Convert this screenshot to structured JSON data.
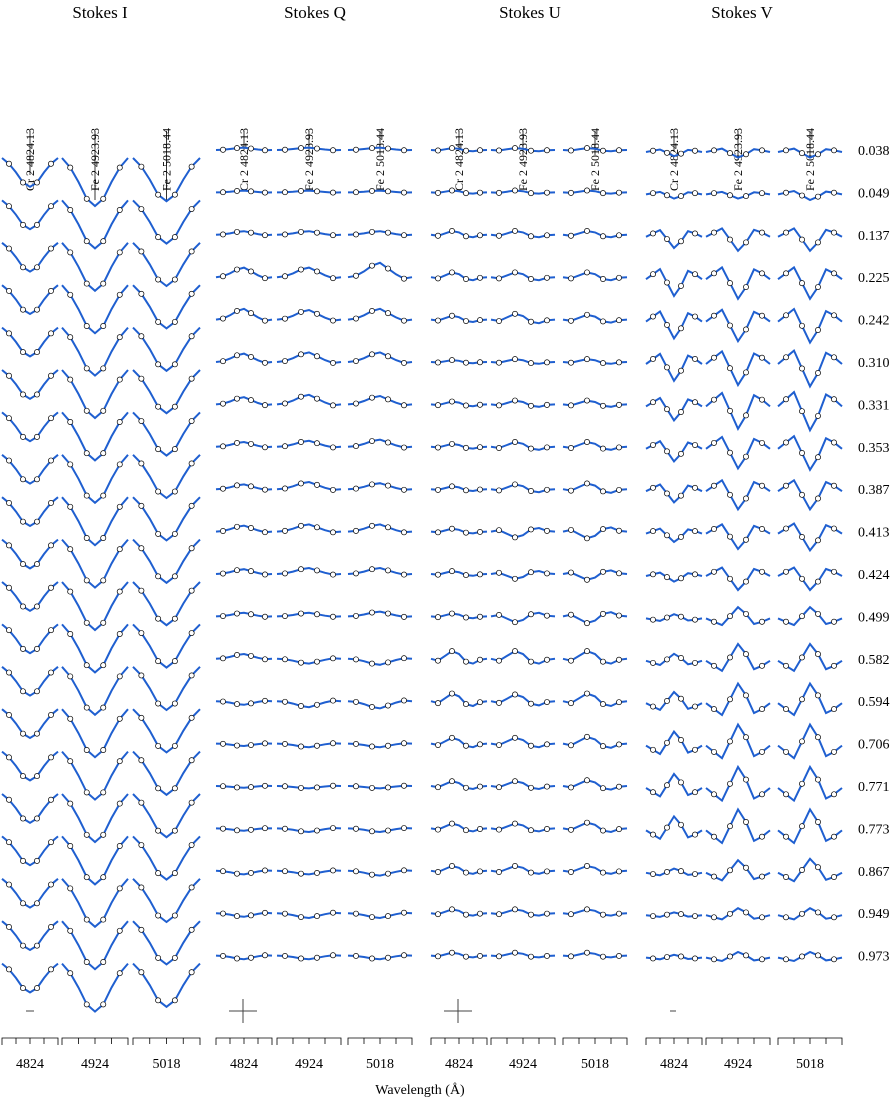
{
  "chart_data": {
    "type": "profile-grid",
    "xlabel": "Wavelength (Å)",
    "lines": [
      "Cr 2 4824.13",
      "Fe 2 4923.93",
      "Fe 2 5018.44"
    ],
    "x_labels": [
      4824,
      4924,
      5018
    ],
    "phases": [
      "0.038",
      "0.049",
      "0.137",
      "0.225",
      "0.242",
      "0.310",
      "0.331",
      "0.353",
      "0.387",
      "0.413",
      "0.424",
      "0.499",
      "0.582",
      "0.594",
      "0.706",
      "0.771",
      "0.773",
      "0.867",
      "0.949",
      "0.973"
    ],
    "model_color": "#1f5fd0",
    "stokes": [
      {
        "name": "Stokes I",
        "template": [
          0,
          -0.2,
          -0.5,
          -0.85,
          -1,
          -0.85,
          -0.5,
          -0.2,
          0
        ],
        "amplitudes": [
          [
            0.6,
            1,
            0.9
          ],
          [
            0.6,
            1,
            0.9
          ],
          [
            0.6,
            1,
            0.9
          ],
          [
            0.6,
            1,
            0.9
          ],
          [
            0.6,
            1,
            0.9
          ],
          [
            0.6,
            1,
            0.9
          ],
          [
            0.6,
            1,
            0.9
          ],
          [
            0.6,
            1,
            0.9
          ],
          [
            0.6,
            1,
            0.9
          ],
          [
            0.6,
            1,
            0.9
          ],
          [
            0.6,
            1,
            0.9
          ],
          [
            0.6,
            1,
            0.9
          ],
          [
            0.6,
            1,
            0.9
          ],
          [
            0.6,
            1,
            0.9
          ],
          [
            0.6,
            1,
            0.9
          ],
          [
            0.6,
            1,
            0.9
          ],
          [
            0.6,
            1,
            0.9
          ],
          [
            0.6,
            1,
            0.9
          ],
          [
            0.6,
            1,
            0.9
          ],
          [
            0.6,
            1,
            0.9
          ]
        ]
      },
      {
        "name": "Stokes Q",
        "template": [
          0,
          0.1,
          0.4,
          0.8,
          1,
          0.6,
          0.2,
          -0.1,
          0
        ],
        "amplitudes": [
          [
            0.2,
            0.2,
            0.2
          ],
          [
            0.15,
            0.15,
            0.15
          ],
          [
            0.3,
            0.3,
            0.3
          ],
          [
            0.8,
            0.8,
            1.2
          ],
          [
            0.9,
            0.8,
            0.9
          ],
          [
            0.7,
            0.8,
            0.8
          ],
          [
            0.6,
            0.8,
            0.7
          ],
          [
            0.4,
            0.5,
            0.6
          ],
          [
            0.4,
            0.6,
            0.5
          ],
          [
            0.5,
            0.6,
            0.6
          ],
          [
            0.4,
            0.5,
            0.5
          ],
          [
            0.3,
            0.3,
            0.4
          ],
          [
            0.4,
            -0.4,
            -0.5
          ],
          [
            -0.3,
            -0.5,
            -0.6
          ],
          [
            -0.2,
            -0.3,
            -0.3
          ],
          [
            -0.15,
            -0.2,
            -0.2
          ],
          [
            -0.2,
            -0.3,
            -0.3
          ],
          [
            -0.3,
            -0.3,
            -0.4
          ],
          [
            -0.3,
            -0.4,
            -0.4
          ],
          [
            -0.3,
            -0.3,
            -0.3
          ]
        ]
      },
      {
        "name": "Stokes U",
        "template": [
          0,
          -0.2,
          0.3,
          0.8,
          0.5,
          -0.3,
          -0.5,
          -0.1,
          0
        ],
        "amplitudes": [
          [
            0.2,
            0.2,
            0.2
          ],
          [
            0.2,
            0.2,
            0.2
          ],
          [
            0.4,
            0.4,
            0.4
          ],
          [
            0.5,
            0.5,
            0.5
          ],
          [
            0.4,
            0.6,
            0.5
          ],
          [
            0.2,
            0.3,
            0.3
          ],
          [
            0.3,
            0.4,
            0.4
          ],
          [
            0.3,
            0.5,
            0.5
          ],
          [
            0.3,
            0.5,
            0.6
          ],
          [
            0.3,
            -0.6,
            -0.7
          ],
          [
            0.3,
            -0.5,
            -0.6
          ],
          [
            0.3,
            -0.6,
            -0.7
          ],
          [
            0.8,
            0.8,
            0.8
          ],
          [
            0.8,
            0.7,
            0.8
          ],
          [
            0.6,
            0.6,
            0.7
          ],
          [
            0.5,
            0.5,
            0.6
          ],
          [
            0.5,
            0.5,
            0.6
          ],
          [
            0.5,
            0.5,
            0.5
          ],
          [
            0.4,
            0.4,
            0.4
          ],
          [
            0.3,
            0.3,
            0.3
          ]
        ]
      },
      {
        "name": "Stokes V",
        "template": [
          0,
          0.3,
          0.6,
          -0.2,
          -1,
          -0.4,
          0.5,
          0.3,
          0
        ],
        "amplitudes": [
          [
            0.3,
            0.4,
            0.4
          ],
          [
            0.3,
            0.3,
            0.4
          ],
          [
            0.8,
            1,
            1
          ],
          [
            1.2,
            1.4,
            1.4
          ],
          [
            1.2,
            1.4,
            1.5
          ],
          [
            1.2,
            1.5,
            1.6
          ],
          [
            1,
            1.6,
            1.7
          ],
          [
            0.9,
            1.4,
            1.5
          ],
          [
            0.8,
            1.3,
            1.3
          ],
          [
            0.6,
            1.1,
            1.2
          ],
          [
            0.4,
            1,
            1
          ],
          [
            -0.3,
            -0.8,
            -0.8
          ],
          [
            -0.5,
            -1.2,
            -1.2
          ],
          [
            -0.8,
            -1.4,
            -1.4
          ],
          [
            -1,
            -1.5,
            -1.5
          ],
          [
            -1,
            -1.5,
            -1.5
          ],
          [
            -1,
            -1.5,
            -1.5
          ],
          [
            -0.3,
            -0.9,
            -1
          ],
          [
            -0.2,
            -0.5,
            -0.5
          ],
          [
            -0.2,
            -0.4,
            -0.4
          ]
        ]
      }
    ]
  }
}
